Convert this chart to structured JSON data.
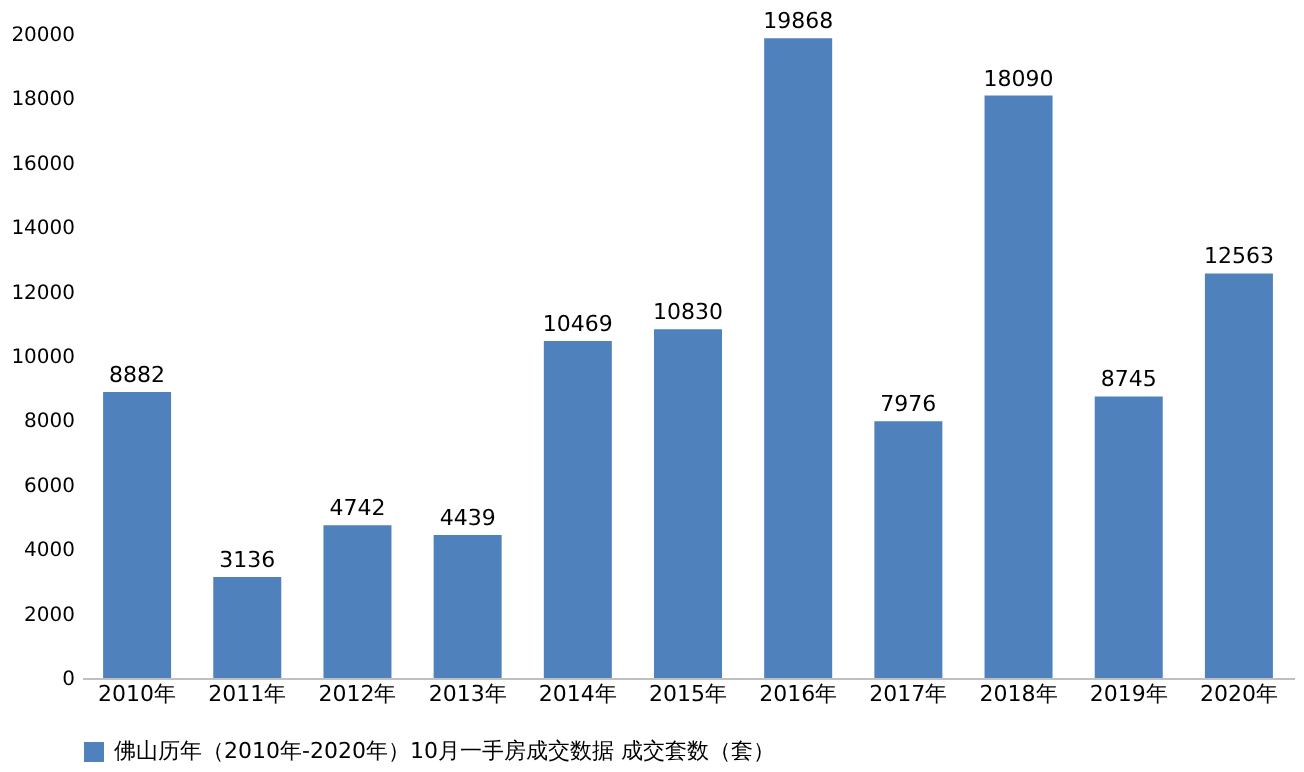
{
  "chart_data": {
    "type": "bar",
    "categories": [
      "2010年",
      "2011年",
      "2012年",
      "2013年",
      "2014年",
      "2015年",
      "2016年",
      "2017年",
      "2018年",
      "2019年",
      "2020年"
    ],
    "series": [
      {
        "name": "佛山历年（2010年-2020年）10月一手房成交数据 成交套数（套）",
        "color": "#4f81bd",
        "values": [
          8882,
          3136,
          4742,
          4439,
          10469,
          10830,
          19868,
          7976,
          18090,
          8745,
          12563
        ]
      }
    ],
    "ylim": [
      0,
      20000
    ],
    "yticks": [
      0,
      2000,
      4000,
      6000,
      8000,
      10000,
      12000,
      14000,
      16000,
      18000,
      20000
    ],
    "data_labels": true,
    "legend": "bottom",
    "grid": false
  }
}
